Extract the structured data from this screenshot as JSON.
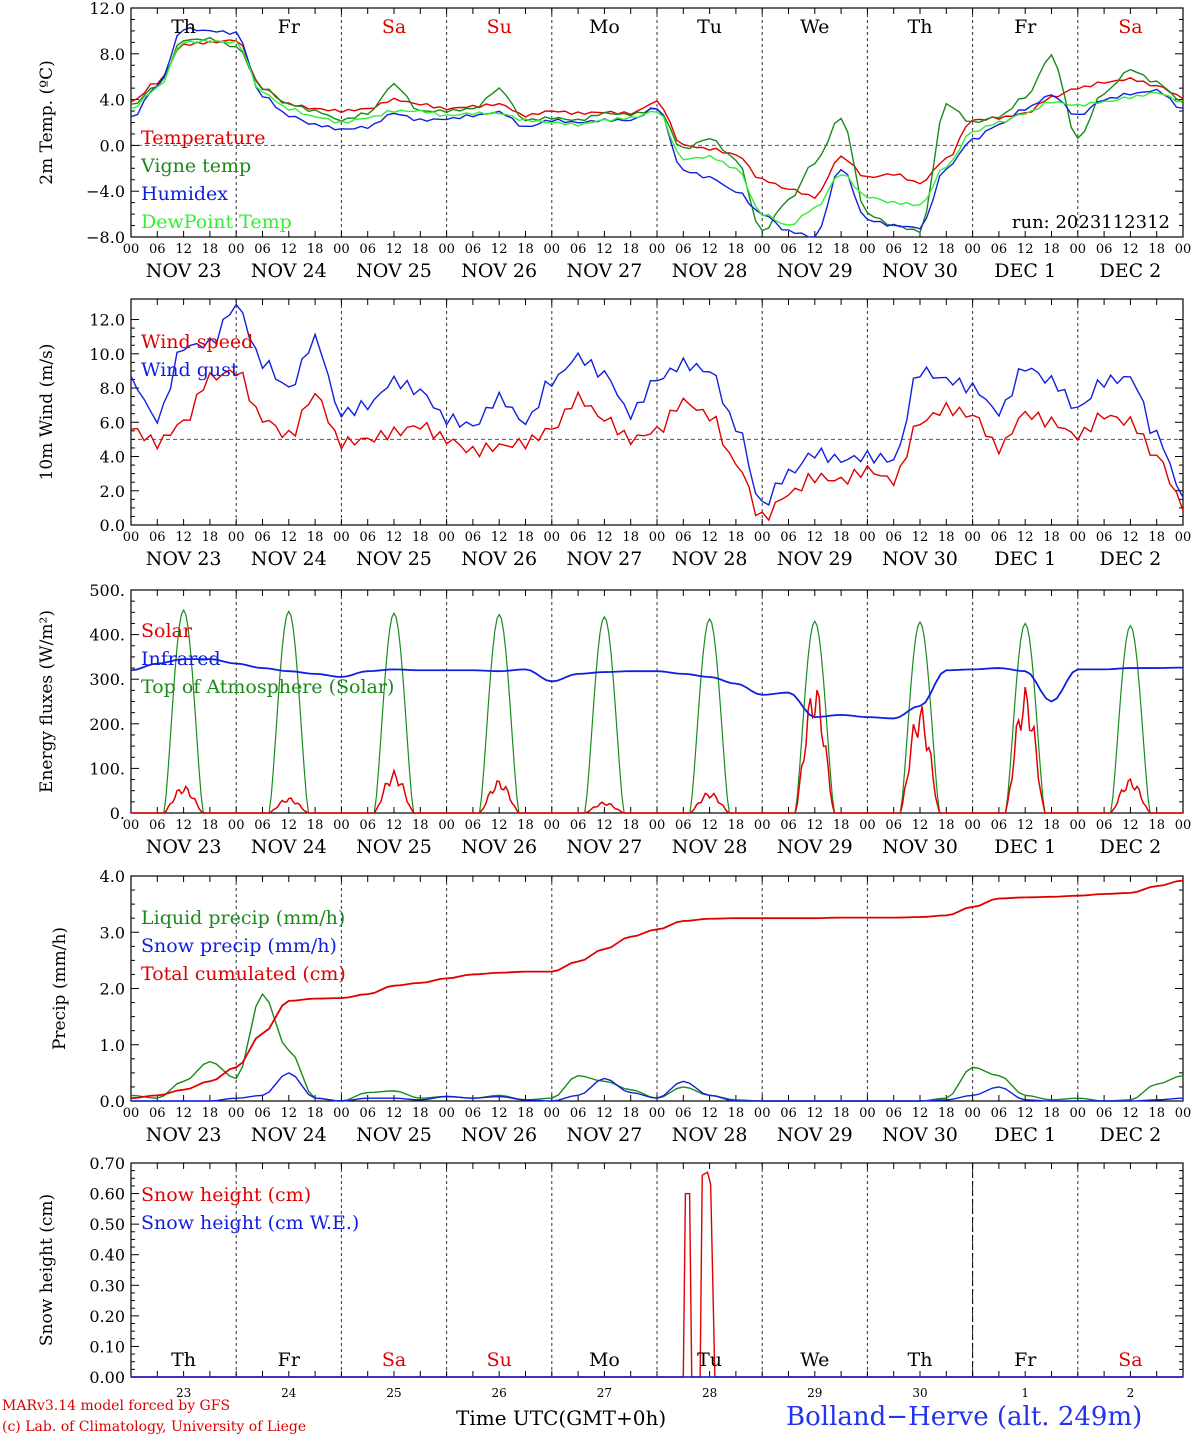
{
  "colors": {
    "temperature": "#e00000",
    "vigne": "#1a8a1a",
    "humidex": "#1020e0",
    "dewpoint": "#33ee33",
    "weekend": "#e00000",
    "weekday": "#000000",
    "station": "#2233ee"
  },
  "day_labels": [
    {
      "name": "Th",
      "weekend": false
    },
    {
      "name": "Fr",
      "weekend": false
    },
    {
      "name": "Sa",
      "weekend": true
    },
    {
      "name": "Su",
      "weekend": true
    },
    {
      "name": "Mo",
      "weekend": false
    },
    {
      "name": "Tu",
      "weekend": false
    },
    {
      "name": "We",
      "weekend": false
    },
    {
      "name": "Th",
      "weekend": false
    },
    {
      "name": "Fr",
      "weekend": false
    },
    {
      "name": "Sa",
      "weekend": true
    }
  ],
  "date_labels": [
    "NOV 23",
    "NOV 24",
    "NOV 25",
    "NOV 26",
    "NOV 27",
    "NOV 28",
    "NOV 29",
    "NOV 30",
    "DEC  1",
    "DEC  2"
  ],
  "hour_ticks": [
    "00",
    "06",
    "12",
    "18"
  ],
  "day_numbers": [
    "23",
    "24",
    "25",
    "26",
    "27",
    "28",
    "29",
    "30",
    "1",
    "2"
  ],
  "run_label": "run: 2023112312",
  "footer": {
    "model": "MARv3.14 model forced by GFS",
    "credit": "(c) Lab. of Climatology, University of Liege",
    "time_axis": "Time UTC(GMT+0h)",
    "station": "Bolland−Herve (alt. 249m)"
  },
  "chart_data": [
    {
      "type": "line",
      "ylabel": "2m Temp. (ºC)",
      "ylim": [
        -8,
        12
      ],
      "yticks": [
        "12.0",
        "8.0",
        "4.0",
        "0.0",
        "−4.0",
        "−8.0"
      ],
      "ytick_values": [
        12,
        8,
        4,
        0,
        -4,
        -8
      ],
      "reference_line": 0,
      "x_days": [
        0,
        0.25,
        0.5,
        0.75,
        1,
        1.25,
        1.5,
        1.75,
        2,
        2.25,
        2.5,
        2.75,
        3,
        3.25,
        3.5,
        3.75,
        4,
        4.25,
        4.5,
        4.75,
        5,
        5.25,
        5.5,
        5.75,
        6,
        6.25,
        6.5,
        6.75,
        7,
        7.25,
        7.5,
        7.75,
        8,
        8.25,
        8.5,
        8.75,
        9,
        9.25,
        9.5,
        9.75,
        10
      ],
      "series": [
        {
          "name": "Temperature",
          "color_key": "temperature",
          "values": [
            3.8,
            5.5,
            8.8,
            9.0,
            9.2,
            5.0,
            3.6,
            3.2,
            3.0,
            3.2,
            4.0,
            3.6,
            3.2,
            3.4,
            3.6,
            2.6,
            3.0,
            2.8,
            2.9,
            2.8,
            3.8,
            0.0,
            -0.3,
            -0.8,
            -3.0,
            -3.8,
            -4.5,
            -1.0,
            -2.8,
            -2.5,
            -3.3,
            -1.2,
            2.2,
            2.4,
            2.8,
            4.2,
            5.0,
            5.5,
            5.8,
            5.2,
            4.2
          ]
        },
        {
          "name": "Vigne temp",
          "color_key": "vigne",
          "values": [
            3.5,
            5.2,
            9.2,
            9.3,
            8.6,
            5.0,
            3.6,
            3.0,
            2.2,
            2.8,
            5.3,
            3.0,
            3.0,
            3.2,
            4.9,
            2.2,
            2.4,
            2.2,
            2.8,
            2.7,
            3.2,
            -0.3,
            0.6,
            -1.2,
            -7.5,
            -4.8,
            -1.5,
            2.4,
            -6.0,
            -7.0,
            -7.5,
            3.6,
            2.0,
            2.5,
            4.2,
            7.8,
            0.6,
            4.6,
            6.6,
            5.5,
            3.8
          ]
        },
        {
          "name": "Humidex",
          "color_key": "humidex",
          "values": [
            2.4,
            5.2,
            10.2,
            10.0,
            9.8,
            4.3,
            2.6,
            1.8,
            1.4,
            1.6,
            2.8,
            2.2,
            2.3,
            2.6,
            2.9,
            1.6,
            2.2,
            2.0,
            2.2,
            2.2,
            3.3,
            -2.2,
            -2.8,
            -4.0,
            -6.0,
            -7.5,
            -8.0,
            -2.0,
            -6.5,
            -7.0,
            -7.2,
            -2.0,
            0.5,
            1.8,
            3.2,
            4.4,
            2.6,
            4.0,
            4.5,
            4.8,
            3.2
          ]
        },
        {
          "name": "DewPoint Temp",
          "color_key": "dewpoint",
          "values": [
            3.2,
            5.0,
            9.0,
            9.1,
            9.0,
            4.6,
            3.2,
            2.5,
            2.0,
            2.4,
            3.0,
            3.0,
            2.6,
            2.8,
            2.8,
            2.2,
            2.0,
            1.8,
            2.2,
            2.4,
            3.0,
            -1.2,
            -1.0,
            -2.0,
            -6.0,
            -7.0,
            -5.5,
            -2.5,
            -4.5,
            -5.0,
            -5.2,
            -1.8,
            1.2,
            2.0,
            2.8,
            3.8,
            3.5,
            3.8,
            4.2,
            4.6,
            3.8
          ]
        }
      ]
    },
    {
      "type": "line",
      "ylabel": "10m Wind (m/s)",
      "ylim": [
        0,
        13.2
      ],
      "yticks": [
        "0.0",
        "2.0",
        "4.0",
        "6.0",
        "8.0",
        "10.0",
        "12.0"
      ],
      "ytick_values": [
        0,
        2,
        4,
        6,
        8,
        10,
        12
      ],
      "reference_line": 5,
      "x_days": [
        0,
        0.25,
        0.5,
        0.75,
        1,
        1.25,
        1.5,
        1.75,
        2,
        2.25,
        2.5,
        2.75,
        3,
        3.25,
        3.5,
        3.75,
        4,
        4.25,
        4.5,
        4.75,
        5,
        5.25,
        5.5,
        5.75,
        6,
        6.25,
        6.5,
        6.75,
        7,
        7.25,
        7.5,
        7.75,
        8,
        8.25,
        8.5,
        8.75,
        9,
        9.25,
        9.5,
        9.75,
        10
      ],
      "series": [
        {
          "name": "Wind speed",
          "color_key": "temperature",
          "values": [
            5.6,
            4.8,
            6.0,
            8.6,
            9.0,
            6.2,
            5.2,
            7.6,
            4.8,
            5.0,
            5.4,
            5.8,
            5.0,
            4.3,
            4.6,
            4.8,
            5.6,
            7.4,
            6.2,
            5.0,
            5.5,
            7.2,
            6.4,
            3.6,
            0.4,
            1.8,
            2.8,
            2.6,
            3.2,
            2.6,
            6.0,
            6.8,
            6.4,
            4.5,
            6.5,
            6.0,
            5.2,
            6.4,
            6.0,
            4.0,
            1.2
          ]
        },
        {
          "name": "Wind gust",
          "color_key": "humidex",
          "values": [
            8.4,
            6.2,
            10.4,
            10.6,
            12.8,
            9.5,
            8.0,
            10.8,
            6.5,
            7.0,
            8.4,
            7.8,
            6.2,
            5.8,
            7.4,
            6.0,
            8.4,
            9.8,
            8.8,
            6.5,
            8.5,
            9.4,
            9.0,
            5.8,
            1.2,
            3.0,
            4.2,
            3.8,
            4.0,
            3.8,
            9.0,
            8.5,
            8.0,
            6.6,
            9.2,
            8.4,
            6.8,
            8.4,
            8.6,
            5.2,
            1.8
          ]
        }
      ]
    },
    {
      "type": "line",
      "ylabel": "Energy fluxes (W/m²)",
      "ylim": [
        0,
        500
      ],
      "yticks": [
        "0.",
        "100.",
        "200.",
        "300.",
        "400.",
        "500."
      ],
      "ytick_values": [
        0,
        100,
        200,
        300,
        400,
        500
      ],
      "reference_line": null,
      "x_days": [
        0,
        0.25,
        0.5,
        0.75,
        1,
        1.25,
        1.5,
        1.75,
        2,
        2.25,
        2.5,
        2.75,
        3,
        3.25,
        3.5,
        3.75,
        4,
        4.25,
        4.5,
        4.75,
        5,
        5.25,
        5.5,
        5.75,
        6,
        6.25,
        6.5,
        6.75,
        7,
        7.25,
        7.5,
        7.75,
        8,
        8.25,
        8.5,
        8.75,
        9,
        9.25,
        9.5,
        9.75,
        10
      ],
      "daily_peaks": {
        "solar": [
          62,
          35,
          95,
          75,
          25,
          48,
          295,
          245,
          285,
          78
        ],
        "toa": [
          455,
          452,
          448,
          445,
          440,
          435,
          430,
          428,
          425,
          420
        ]
      },
      "series": [
        {
          "name": "Solar",
          "color_key": "temperature",
          "values": []
        },
        {
          "name": "Infrared",
          "color_key": "humidex",
          "values": [
            320,
            335,
            345,
            345,
            335,
            325,
            318,
            312,
            305,
            318,
            322,
            320,
            320,
            320,
            318,
            322,
            295,
            312,
            316,
            318,
            318,
            312,
            305,
            290,
            265,
            270,
            215,
            220,
            215,
            212,
            240,
            320,
            322,
            325,
            318,
            250,
            322,
            322,
            325,
            325,
            326
          ]
        },
        {
          "name": "Top of Atmosphere (Solar)",
          "color_key": "vigne",
          "values": []
        }
      ]
    },
    {
      "type": "line",
      "ylabel": "Precip (mm/h)",
      "ylim": [
        0,
        4.0
      ],
      "yticks": [
        "0.0",
        "1.0",
        "2.0",
        "3.0",
        "4.0"
      ],
      "ytick_values": [
        0,
        1,
        2,
        3,
        4
      ],
      "reference_line": null,
      "x_days": [
        0,
        0.25,
        0.5,
        0.75,
        1,
        1.25,
        1.5,
        1.75,
        2,
        2.25,
        2.5,
        2.75,
        3,
        3.25,
        3.5,
        3.75,
        4,
        4.25,
        4.5,
        4.75,
        5,
        5.25,
        5.5,
        5.75,
        6,
        6.25,
        6.5,
        6.75,
        7,
        7.25,
        7.5,
        7.75,
        8,
        8.25,
        8.5,
        8.75,
        9,
        9.25,
        9.5,
        9.75,
        10
      ],
      "series": [
        {
          "name": "Liquid precip (mm/h)",
          "color_key": "vigne",
          "values": [
            0.1,
            0.05,
            0.35,
            0.7,
            0.4,
            1.9,
            0.9,
            0.05,
            0.0,
            0.15,
            0.18,
            0.05,
            0.08,
            0.05,
            0.1,
            0.02,
            0.05,
            0.45,
            0.35,
            0.2,
            0.05,
            0.25,
            0.1,
            0.02,
            0.0,
            0.0,
            0.0,
            0.0,
            0.0,
            0.0,
            0.0,
            0.05,
            0.6,
            0.45,
            0.1,
            0.02,
            0.05,
            0.0,
            0.02,
            0.3,
            0.45
          ]
        },
        {
          "name": "Snow precip (mm/h)",
          "color_key": "humidex",
          "values": [
            0.0,
            0.0,
            0.0,
            0.0,
            0.05,
            0.1,
            0.5,
            0.05,
            0.0,
            0.05,
            0.05,
            0.02,
            0.08,
            0.05,
            0.08,
            0.02,
            0.0,
            0.1,
            0.4,
            0.15,
            0.05,
            0.35,
            0.1,
            0.0,
            0.0,
            0.0,
            0.0,
            0.0,
            0.0,
            0.0,
            0.0,
            0.02,
            0.1,
            0.25,
            0.02,
            0.0,
            0.0,
            0.0,
            0.0,
            0.02,
            0.05
          ]
        },
        {
          "name": "Total cumulated (cm)",
          "color_key": "temperature",
          "values": [
            0.05,
            0.1,
            0.2,
            0.35,
            0.6,
            1.2,
            1.78,
            1.82,
            1.83,
            1.9,
            2.05,
            2.1,
            2.18,
            2.25,
            2.28,
            2.3,
            2.3,
            2.48,
            2.7,
            2.92,
            3.05,
            3.2,
            3.24,
            3.25,
            3.25,
            3.25,
            3.25,
            3.26,
            3.26,
            3.26,
            3.27,
            3.3,
            3.45,
            3.6,
            3.62,
            3.63,
            3.65,
            3.68,
            3.7,
            3.82,
            3.92
          ]
        }
      ]
    },
    {
      "type": "line",
      "ylabel": "Snow height (cm)",
      "ylim": [
        0,
        0.7
      ],
      "yticks": [
        "0.00",
        "0.10",
        "0.20",
        "0.30",
        "0.40",
        "0.50",
        "0.60",
        "0.70"
      ],
      "ytick_values": [
        0,
        0.1,
        0.2,
        0.3,
        0.4,
        0.5,
        0.6,
        0.7
      ],
      "reference_line": null,
      "series": [
        {
          "name": "Snow height (cm)",
          "color_key": "temperature",
          "x_days": [
            0,
            5.25,
            5.27,
            5.31,
            5.33,
            5.41,
            5.43,
            5.48,
            5.51,
            5.55,
            10
          ],
          "values": [
            0,
            0,
            0.6,
            0.6,
            0,
            0,
            0.66,
            0.67,
            0.63,
            0,
            0
          ]
        },
        {
          "name": "Snow height (cm W.E.)",
          "color_key": "humidex",
          "x_days": [
            0,
            10
          ],
          "values": [
            0,
            0
          ]
        }
      ]
    }
  ]
}
